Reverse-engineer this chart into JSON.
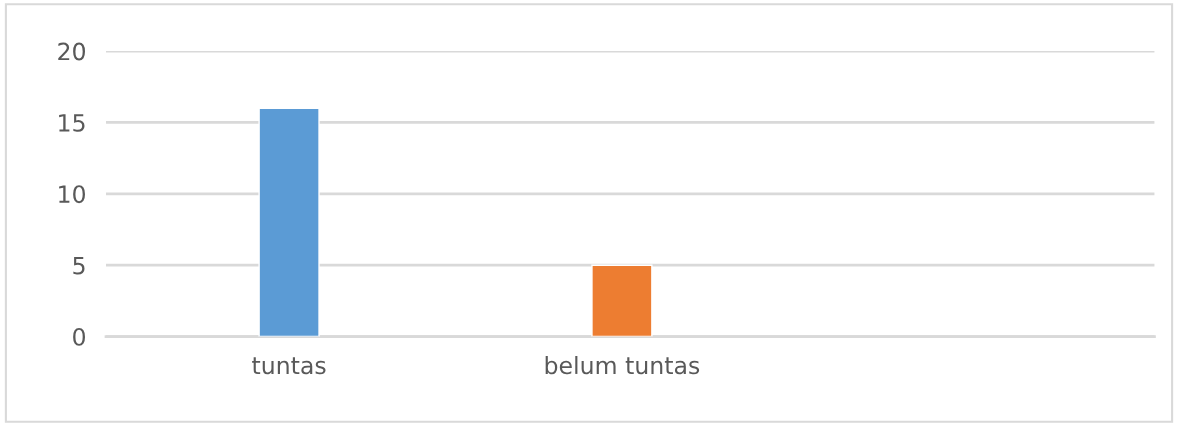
{
  "chart_data": {
    "type": "bar",
    "categories": [
      "tuntas",
      "belum tuntas"
    ],
    "values": [
      16,
      5
    ],
    "colors": [
      "#5b9bd5",
      "#ed7d31"
    ],
    "ylim": [
      0,
      20
    ],
    "yticks": [
      0,
      5,
      10,
      15,
      20
    ],
    "grid": "y"
  }
}
